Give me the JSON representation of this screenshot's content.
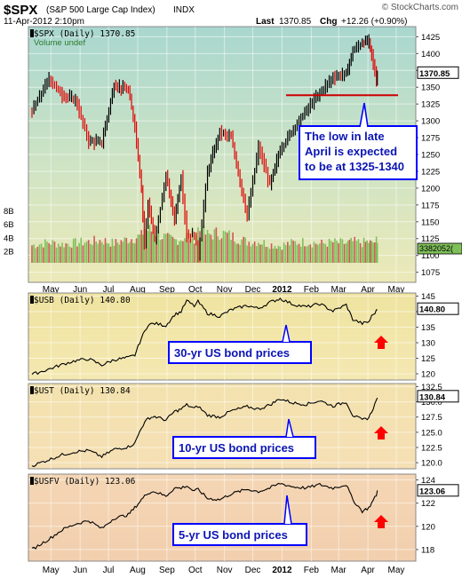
{
  "header": {
    "symbol": "$SPX",
    "name": "(S&P 500 Large Cap Index)",
    "exchange": "INDX",
    "date": "11-Apr-2012 2:10pm",
    "last_label": "Last",
    "last_value": "1370.85",
    "chg_label": "Chg",
    "chg_value": "+12.26 (+0.90%)",
    "watermark": "© StockCharts.com"
  },
  "colors": {
    "up": "#000000",
    "down": "#e00000",
    "annotation_box": "#0000ff",
    "annotation_text": "#0b15b4",
    "arrow": "#ff0000",
    "vol_green": "#7fbf5a",
    "vol_red": "#d25555"
  },
  "x_axis_months": [
    "May",
    "Jun",
    "Jul",
    "Aug",
    "Sep",
    "Oct",
    "Nov",
    "Dec",
    "2012",
    "Feb",
    "Mar",
    "Apr",
    "May"
  ],
  "chart_data": [
    {
      "type": "line",
      "panel": "spx",
      "legend": "$SPX (Daily) 1370.85",
      "sublegend": "Volume undef",
      "last_label": "1370.85",
      "volume_last_label": "3382052(",
      "y_ticks": [
        1075,
        1100,
        1125,
        1150,
        1175,
        1200,
        1225,
        1250,
        1275,
        1300,
        1325,
        1350,
        1375,
        1400,
        1425
      ],
      "ylim": [
        1060,
        1440
      ],
      "volume_ticks": [
        "2B",
        "4B",
        "6B",
        "8B"
      ],
      "volume_ylim": [
        0,
        9
      ],
      "x": [
        "2011-04-11",
        "2011-04-29",
        "2011-05-13",
        "2011-05-27",
        "2011-06-10",
        "2011-06-24",
        "2011-07-07",
        "2011-07-22",
        "2011-07-29",
        "2011-08-05",
        "2011-08-08",
        "2011-08-12",
        "2011-08-19",
        "2011-08-31",
        "2011-09-09",
        "2011-09-16",
        "2011-09-22",
        "2011-09-30",
        "2011-10-04",
        "2011-10-14",
        "2011-10-27",
        "2011-11-08",
        "2011-11-25",
        "2011-12-07",
        "2011-12-19",
        "2011-12-30",
        "2012-01-13",
        "2012-01-27",
        "2012-02-10",
        "2012-02-24",
        "2012-03-09",
        "2012-03-16",
        "2012-03-26",
        "2012-04-02",
        "2012-04-05",
        "2012-04-10",
        "2012-04-11"
      ],
      "values": [
        1314,
        1363,
        1338,
        1331,
        1270,
        1268,
        1353,
        1345,
        1292,
        1199,
        1119,
        1178,
        1123,
        1218,
        1154,
        1216,
        1129,
        1131,
        1099,
        1224,
        1284,
        1275,
        1158,
        1261,
        1205,
        1257,
        1289,
        1316,
        1342,
        1365,
        1370,
        1404,
        1416,
        1419,
        1398,
        1358,
        1371
      ],
      "annotation_line_level": 1338,
      "annotation": [
        "The low in late",
        "April is expected",
        "to be at 1325-1340"
      ],
      "volume_values": [
        3.4,
        4.0,
        3.6,
        3.9,
        4.1,
        4.4,
        3.8,
        4.6,
        4.9,
        5.2,
        6.8,
        6.4,
        6.1,
        4.8,
        4.4,
        4.7,
        5.3,
        5.0,
        6.6,
        5.4,
        5.9,
        5.2,
        4.1,
        4.2,
        3.6,
        3.3,
        3.9,
        4.1,
        3.7,
        4.0,
        3.8,
        4.1,
        3.9,
        4.1,
        3.7,
        4.3,
        3.5
      ]
    },
    {
      "type": "line",
      "panel": "usb",
      "legend": "$USB (Daily) 140.80",
      "last_label": "140.80",
      "y_ticks": [
        120,
        125,
        130,
        135,
        140,
        145
      ],
      "ylim": [
        118,
        146
      ],
      "x": [
        "2011-04-11",
        "2011-04-29",
        "2011-05-13",
        "2011-05-27",
        "2011-06-10",
        "2011-06-24",
        "2011-07-07",
        "2011-07-22",
        "2011-07-29",
        "2011-08-05",
        "2011-08-12",
        "2011-08-19",
        "2011-08-31",
        "2011-09-09",
        "2011-09-16",
        "2011-09-22",
        "2011-09-30",
        "2011-10-04",
        "2011-10-14",
        "2011-10-27",
        "2011-11-08",
        "2011-11-25",
        "2011-12-07",
        "2011-12-19",
        "2011-12-30",
        "2012-01-13",
        "2012-01-27",
        "2012-02-10",
        "2012-02-24",
        "2012-03-09",
        "2012-03-16",
        "2012-03-26",
        "2012-04-02",
        "2012-04-05",
        "2012-04-10",
        "2012-04-11"
      ],
      "values": [
        119.8,
        121.5,
        123.0,
        124.2,
        124.8,
        122.8,
        124.5,
        125.2,
        126.0,
        131.5,
        135.8,
        136.2,
        135.5,
        139.0,
        140.0,
        143.5,
        141.8,
        143.2,
        139.5,
        138.5,
        140.6,
        142.0,
        141.0,
        143.0,
        144.2,
        142.3,
        141.5,
        142.5,
        140.2,
        142.2,
        137.5,
        136.2,
        136.7,
        138.5,
        140.2,
        140.8
      ],
      "annotation": "30-yr US bond prices"
    },
    {
      "type": "line",
      "panel": "ust",
      "legend": "$UST (Daily) 130.84",
      "last_label": "130.84",
      "y_ticks": [
        "120.0",
        "122.5",
        "125.0",
        "127.5",
        "130.0",
        "132.5"
      ],
      "ylim": [
        119,
        133
      ],
      "x": [
        "2011-04-11",
        "2011-04-29",
        "2011-05-13",
        "2011-05-27",
        "2011-06-10",
        "2011-06-24",
        "2011-07-07",
        "2011-07-22",
        "2011-07-29",
        "2011-08-05",
        "2011-08-12",
        "2011-08-19",
        "2011-08-31",
        "2011-09-09",
        "2011-09-16",
        "2011-09-22",
        "2011-09-30",
        "2011-10-04",
        "2011-10-14",
        "2011-10-27",
        "2011-11-08",
        "2011-11-25",
        "2011-12-07",
        "2011-12-19",
        "2011-12-30",
        "2012-01-13",
        "2012-01-27",
        "2012-02-10",
        "2012-02-24",
        "2012-03-09",
        "2012-03-16",
        "2012-03-26",
        "2012-04-02",
        "2012-04-05",
        "2012-04-10",
        "2012-04-11"
      ],
      "values": [
        119.5,
        120.5,
        121.3,
        121.8,
        122.0,
        121.0,
        122.2,
        122.6,
        123.2,
        125.8,
        127.3,
        127.6,
        127.0,
        128.4,
        128.8,
        129.5,
        128.9,
        129.3,
        127.8,
        127.5,
        128.5,
        129.2,
        128.8,
        129.5,
        130.5,
        129.8,
        129.6,
        130.2,
        129.3,
        130.0,
        127.8,
        127.0,
        127.4,
        128.4,
        130.2,
        130.84
      ],
      "annotation": "10-yr US bond prices"
    },
    {
      "type": "line",
      "panel": "usfv",
      "legend": "$USFV (Daily) 123.06",
      "last_label": "123.06",
      "y_ticks": [
        118,
        120,
        122,
        124
      ],
      "ylim": [
        117,
        124.5
      ],
      "x": [
        "2011-04-11",
        "2011-04-29",
        "2011-05-13",
        "2011-05-27",
        "2011-06-10",
        "2011-06-24",
        "2011-07-07",
        "2011-07-22",
        "2011-07-29",
        "2011-08-05",
        "2011-08-12",
        "2011-08-19",
        "2011-08-31",
        "2011-09-09",
        "2011-09-16",
        "2011-09-22",
        "2011-09-30",
        "2011-10-04",
        "2011-10-14",
        "2011-10-27",
        "2011-11-08",
        "2011-11-25",
        "2011-12-07",
        "2011-12-19",
        "2011-12-30",
        "2012-01-13",
        "2012-01-27",
        "2012-02-10",
        "2012-02-24",
        "2012-03-09",
        "2012-03-16",
        "2012-03-26",
        "2012-04-02",
        "2012-04-05",
        "2012-04-10",
        "2012-04-11"
      ],
      "values": [
        118.0,
        118.9,
        119.7,
        120.2,
        120.5,
        119.8,
        120.7,
        121.0,
        121.6,
        122.3,
        122.9,
        123.0,
        122.6,
        123.3,
        123.3,
        123.5,
        123.0,
        123.2,
        122.4,
        122.3,
        122.8,
        123.2,
        123.0,
        123.3,
        123.7,
        123.4,
        123.3,
        123.6,
        123.3,
        123.6,
        122.3,
        121.3,
        121.6,
        122.0,
        122.7,
        123.06
      ],
      "annotation": "5-yr US bond prices"
    }
  ]
}
